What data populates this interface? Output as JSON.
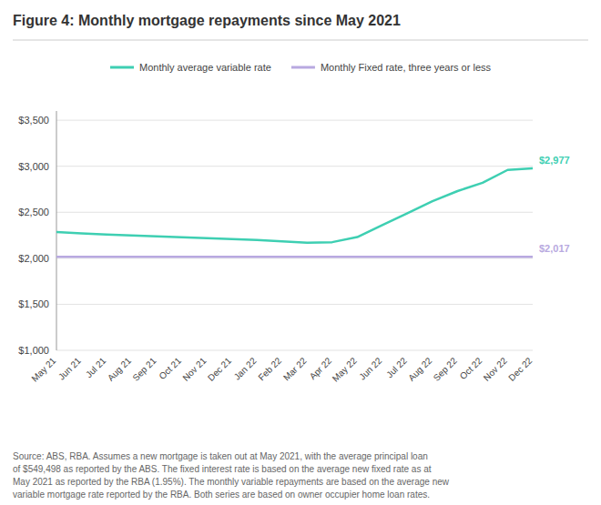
{
  "chart_data": {
    "type": "line",
    "title": "Figure 4: Monthly mortgage repayments since May 2021",
    "categories": [
      "May 21",
      "Jun 21",
      "Jul 21",
      "Aug 21",
      "Sep 21",
      "Oct 21",
      "Nov 21",
      "Dec 21",
      "Jan 22",
      "Feb 22",
      "Mar 22",
      "Apr 22",
      "May 22",
      "Jun 22",
      "Jul 22",
      "Aug 22",
      "Sep 22",
      "Oct 22",
      "Nov 22",
      "Dec 22"
    ],
    "series": [
      {
        "name": "Monthly average variable rate",
        "color": "#3ecfb2",
        "values": [
          2285,
          2270,
          2258,
          2248,
          2238,
          2228,
          2218,
          2208,
          2198,
          2185,
          2170,
          2175,
          2230,
          2360,
          2490,
          2620,
          2730,
          2820,
          2960,
          2977
        ]
      },
      {
        "name": "Monthly Fixed rate, three years or less",
        "color": "#b8a9e0",
        "values": [
          2017,
          2017,
          2017,
          2017,
          2017,
          2017,
          2017,
          2017,
          2017,
          2017,
          2017,
          2017,
          2017,
          2017,
          2017,
          2017,
          2017,
          2017,
          2017,
          2017
        ]
      }
    ],
    "annotations": [
      {
        "text": "$2,977",
        "x": "Dec 22",
        "y": 2977,
        "color": "#3ecfb2"
      },
      {
        "text": "$2,017",
        "x": "Dec 22",
        "y": 2017,
        "color": "#b8a9e0"
      }
    ],
    "source": "Source: ABS, RBA. Assumes a new mortgage is taken out at May 2021, with the average principal loan\nof $549,498 as reported by the ABS. The fixed interest rate is based on the average new fixed rate as at\nMay 2021 as reported by the RBA (1.95%). The monthly variable repayments are based on the average new\nvariable mortgage rate reported by the RBA. Both series are based on owner occupier home loan rates.",
    "ylim": [
      1000,
      3600
    ],
    "yticks": [
      {
        "value": 1000,
        "label": "$1,000"
      },
      {
        "value": 1500,
        "label": "$1,500"
      },
      {
        "value": 2000,
        "label": "$2,000"
      },
      {
        "value": 2500,
        "label": "$2,500"
      },
      {
        "value": 3000,
        "label": "$3,000"
      },
      {
        "value": 3500,
        "label": "$3,500"
      }
    ],
    "grid": true,
    "legend": "top"
  }
}
